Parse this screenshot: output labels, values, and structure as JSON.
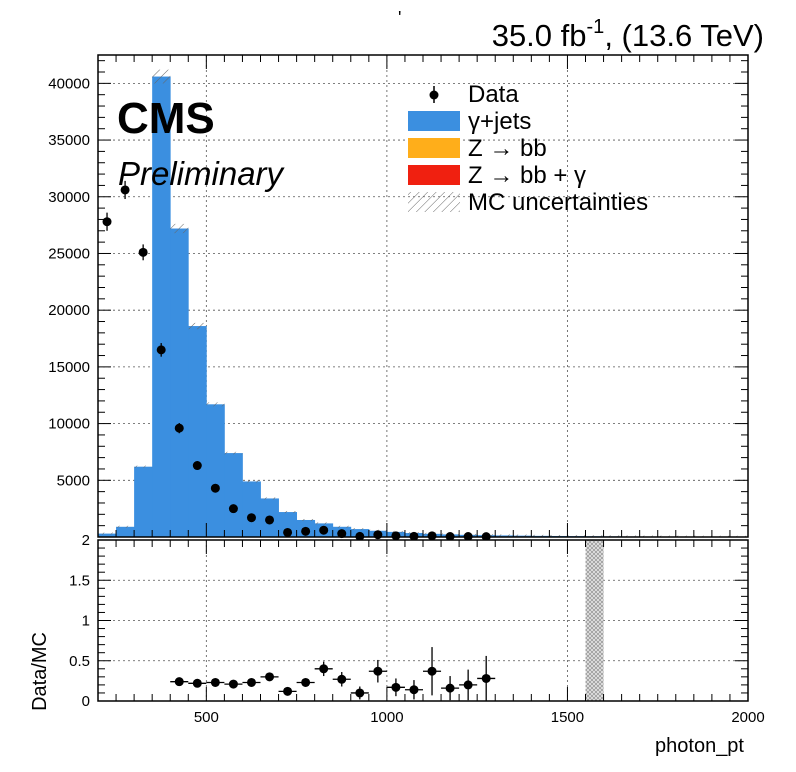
{
  "chart_data": {
    "type": "bar",
    "header": {
      "mark": "'",
      "lumi_value": "35.0 fb",
      "lumi_exponent": "-1",
      "energy": ", (13.6 TeV)"
    },
    "cms_label": "CMS",
    "status_label": "Preliminary",
    "xlabel": "photon_pt",
    "xlim": [
      200,
      2000
    ],
    "x_ticks": [
      500,
      1000,
      1500,
      2000
    ],
    "bin_edges": [
      200,
      250,
      300,
      350,
      400,
      450,
      500,
      550,
      600,
      650,
      700,
      750,
      800,
      850,
      900,
      950,
      1000,
      1050,
      1100,
      1150,
      1200,
      1250,
      1300,
      1350,
      1400,
      1450,
      1500,
      1550,
      1600,
      1650,
      1700,
      1750,
      1800,
      1850,
      1900,
      1950,
      2000
    ],
    "main_panel": {
      "ylabel": "",
      "ylim": [
        0,
        42500
      ],
      "y_ticks": [
        5000,
        10000,
        15000,
        20000,
        25000,
        30000,
        35000,
        40000
      ],
      "series": [
        {
          "name": "γ+jets",
          "color": "#3b8fe0",
          "values": [
            300,
            900,
            6200,
            40600,
            27200,
            18600,
            11700,
            7400,
            4900,
            3400,
            2200,
            1500,
            1200,
            900,
            700,
            550,
            450,
            350,
            280,
            230,
            190,
            160,
            140,
            120,
            100,
            90,
            80,
            70,
            60,
            50,
            45,
            40,
            35,
            30,
            25,
            20
          ]
        },
        {
          "name": "Z → bb",
          "color": "#ffae1a",
          "values": []
        },
        {
          "name": "Z → bb + γ",
          "color": "#f02010",
          "values": []
        }
      ],
      "uncertainty_label": "MC uncertainties",
      "data": {
        "name": "Data",
        "x": [
          225,
          275,
          325,
          375,
          425,
          475,
          525,
          575,
          625,
          675,
          725,
          775,
          825,
          875,
          925,
          975,
          1025,
          1075,
          1125,
          1175,
          1225,
          1275
        ],
        "y": [
          27800,
          30600,
          25100,
          16500,
          9600,
          6300,
          4300,
          2500,
          1700,
          1500,
          400,
          500,
          600,
          300,
          50,
          200,
          100,
          60,
          100,
          40,
          40,
          30
        ],
        "err": [
          800,
          800,
          700,
          600,
          450,
          380,
          320,
          250,
          210,
          190,
          110,
          110,
          120,
          90,
          40,
          70,
          50,
          40,
          50,
          30,
          30,
          30
        ]
      }
    },
    "ratio_panel": {
      "ylabel": "Data/MC",
      "ylim": [
        0,
        2
      ],
      "y_ticks": [
        0,
        0.5,
        1,
        1.5,
        2
      ],
      "y_tick_labels": [
        "0",
        "0.5",
        "1",
        "1.5",
        "2"
      ],
      "x": [
        425,
        475,
        525,
        575,
        625,
        675,
        725,
        775,
        825,
        875,
        925,
        975,
        1025,
        1075,
        1125,
        1175,
        1225,
        1275
      ],
      "y": [
        0.24,
        0.22,
        0.23,
        0.21,
        0.23,
        0.3,
        0.12,
        0.23,
        0.4,
        0.27,
        0.1,
        0.37,
        0.17,
        0.14,
        0.37,
        0.16,
        0.2,
        0.28
      ],
      "err": [
        0.03,
        0.03,
        0.03,
        0.03,
        0.03,
        0.04,
        0.04,
        0.05,
        0.09,
        0.09,
        0.08,
        0.14,
        0.11,
        0.12,
        0.3,
        0.15,
        0.19,
        0.28
      ],
      "shaded_band": [
        1550,
        1600
      ]
    },
    "grid": true,
    "legend_position": "top-right"
  }
}
